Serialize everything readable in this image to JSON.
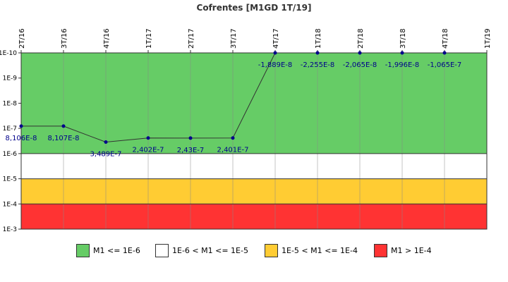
{
  "chart_data": {
    "type": "line",
    "title": "Cofrentes [M1GD 1T/19]",
    "x_categories": [
      "2T/16",
      "3T/16",
      "4T/16",
      "1T/17",
      "2T/17",
      "3T/17",
      "4T/17",
      "1T/18",
      "2T/18",
      "3T/18",
      "4T/18",
      "1T/19"
    ],
    "y_scale": "log",
    "y_reversed": true,
    "ylim": [
      1e-10,
      0.001
    ],
    "y_tick_values": [
      1e-10,
      1e-09,
      1e-08,
      1e-07,
      1e-06,
      1e-05,
      0.0001,
      0.001
    ],
    "y_tick_labels": [
      "1E-10",
      "1E-9",
      "1E-8",
      "1E-7",
      "1E-6",
      "1E-5",
      "1E-4",
      "1E-3"
    ],
    "series": [
      {
        "values": [
          8.106e-08,
          8.107e-08,
          3.489e-07,
          2.402e-07,
          2.43e-07,
          2.401e-07,
          -1.889e-08,
          -2.255e-08,
          -2.065e-08,
          -1.996e-08,
          -1.065e-07,
          null
        ],
        "labels": [
          "8,106E-8",
          "8,107E-8",
          "3,489E-7",
          "2,402E-7",
          "2,43E-7",
          "2,401E-7",
          "-1,889E-8",
          "-2,255E-8",
          "-2,065E-8",
          "-1,996E-8",
          "-1,065E-7",
          ""
        ],
        "color": "#00008b"
      }
    ],
    "bands": [
      {
        "from": 1e-10,
        "to": 1e-06,
        "color": "#66cc66",
        "label": "M1 <= 1E-6"
      },
      {
        "from": 1e-06,
        "to": 1e-05,
        "color": "#ffffff",
        "label": "1E-6 < M1 <= 1E-5"
      },
      {
        "from": 1e-05,
        "to": 0.0001,
        "color": "#ffcc33",
        "label": "1E-5 < M1 <= 1E-4"
      },
      {
        "from": 0.0001,
        "to": 0.001,
        "color": "#ff3333",
        "label": "M1 > 1E-4"
      }
    ],
    "legend_position": "bottom",
    "grid": "vertical"
  }
}
